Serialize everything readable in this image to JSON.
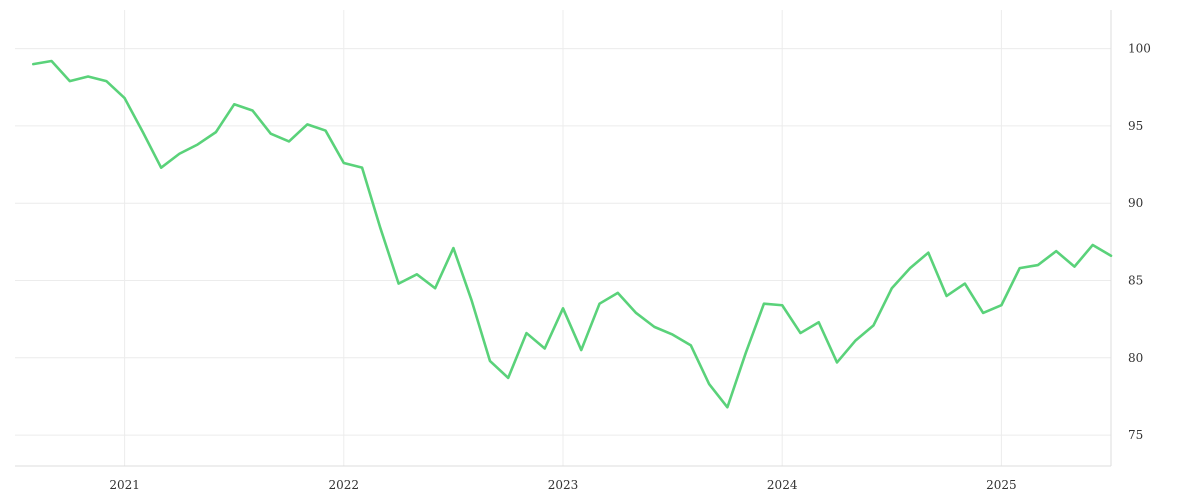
{
  "chart_data": {
    "type": "line",
    "title": "",
    "xlabel": "",
    "ylabel": "",
    "ylim": [
      73,
      102.5
    ],
    "y_ticks": [
      75,
      80,
      85,
      90,
      95,
      100
    ],
    "x_ticks": [
      {
        "label": "2021",
        "value": "2021-01"
      },
      {
        "label": "2022",
        "value": "2022-01"
      },
      {
        "label": "2023",
        "value": "2023-01"
      },
      {
        "label": "2024",
        "value": "2024-01"
      },
      {
        "label": "2025",
        "value": "2025-01"
      }
    ],
    "xlim": [
      "2020-07",
      "2025-07"
    ],
    "y_axis_position": "right",
    "grid": true,
    "legend": "none",
    "series": [
      {
        "color": "#5ad27a",
        "points": [
          [
            "2020-08",
            99.0
          ],
          [
            "2020-09",
            99.2
          ],
          [
            "2020-10",
            97.9
          ],
          [
            "2020-11",
            98.2
          ],
          [
            "2020-12",
            97.9
          ],
          [
            "2021-01",
            96.8
          ],
          [
            "2021-02",
            94.6
          ],
          [
            "2021-03",
            92.3
          ],
          [
            "2021-04",
            93.2
          ],
          [
            "2021-05",
            93.8
          ],
          [
            "2021-06",
            94.6
          ],
          [
            "2021-07",
            96.4
          ],
          [
            "2021-08",
            96.0
          ],
          [
            "2021-09",
            94.5
          ],
          [
            "2021-10",
            94.0
          ],
          [
            "2021-11",
            95.1
          ],
          [
            "2021-12",
            94.7
          ],
          [
            "2022-01",
            92.6
          ],
          [
            "2022-02",
            92.3
          ],
          [
            "2022-03",
            88.4
          ],
          [
            "2022-04",
            84.8
          ],
          [
            "2022-05",
            85.4
          ],
          [
            "2022-06",
            84.5
          ],
          [
            "2022-07",
            87.1
          ],
          [
            "2022-08",
            83.7
          ],
          [
            "2022-09",
            79.8
          ],
          [
            "2022-10",
            78.7
          ],
          [
            "2022-11",
            81.6
          ],
          [
            "2022-12",
            80.6
          ],
          [
            "2023-01",
            83.2
          ],
          [
            "2023-02",
            80.5
          ],
          [
            "2023-03",
            83.5
          ],
          [
            "2023-04",
            84.2
          ],
          [
            "2023-05",
            82.9
          ],
          [
            "2023-06",
            82.0
          ],
          [
            "2023-07",
            81.5
          ],
          [
            "2023-08",
            80.8
          ],
          [
            "2023-09",
            78.3
          ],
          [
            "2023-10",
            76.8
          ],
          [
            "2023-11",
            80.3
          ],
          [
            "2023-12",
            83.5
          ],
          [
            "2024-01",
            83.4
          ],
          [
            "2024-02",
            81.6
          ],
          [
            "2024-03",
            82.3
          ],
          [
            "2024-04",
            79.7
          ],
          [
            "2024-05",
            81.1
          ],
          [
            "2024-06",
            82.1
          ],
          [
            "2024-07",
            84.5
          ],
          [
            "2024-08",
            85.8
          ],
          [
            "2024-09",
            86.8
          ],
          [
            "2024-10",
            84.0
          ],
          [
            "2024-11",
            84.8
          ],
          [
            "2024-12",
            82.9
          ],
          [
            "2025-01",
            83.4
          ],
          [
            "2025-02",
            85.8
          ],
          [
            "2025-03",
            86.0
          ],
          [
            "2025-04",
            86.9
          ],
          [
            "2025-05",
            85.9
          ],
          [
            "2025-06",
            87.3
          ],
          [
            "2025-07",
            86.6
          ]
        ]
      }
    ]
  }
}
